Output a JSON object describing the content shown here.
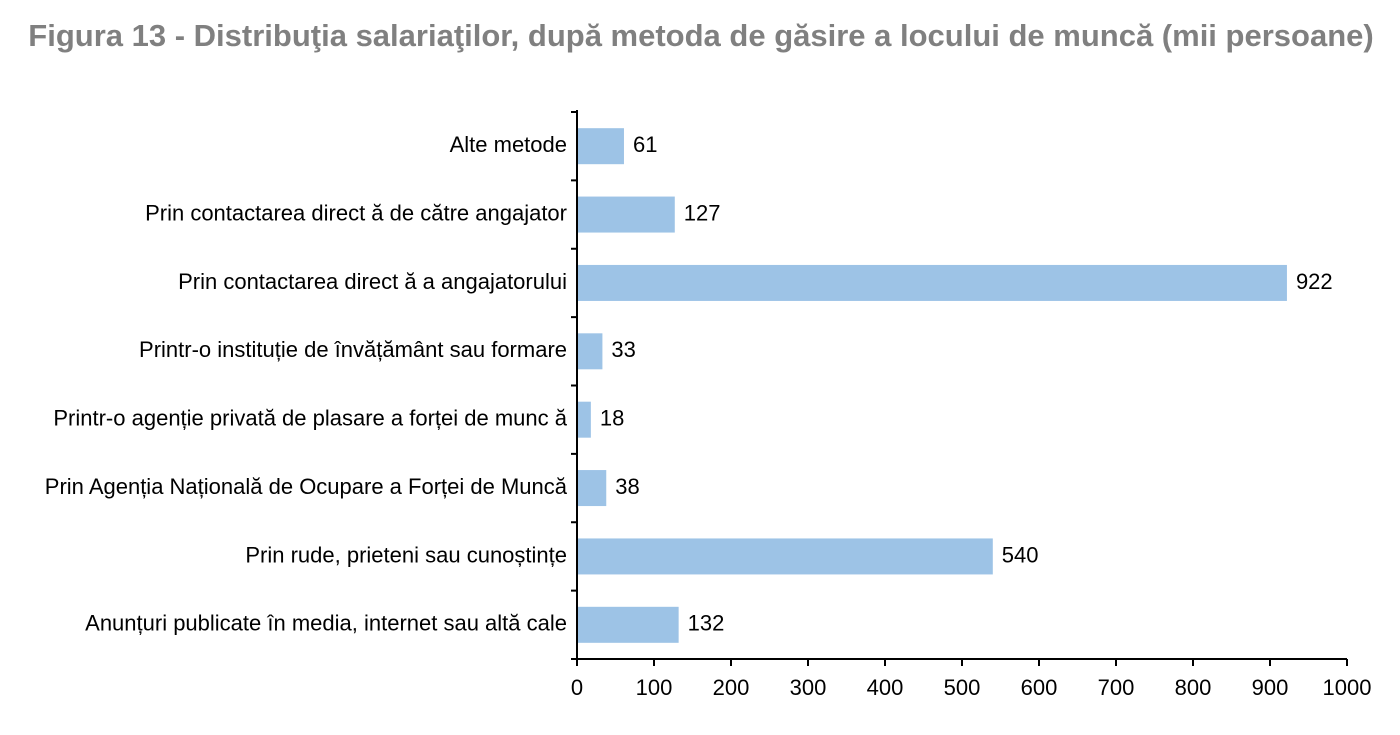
{
  "chart_data": {
    "type": "bar",
    "orientation": "horizontal",
    "title": "Figura 13 - Distribuţia salariaţilor, după metoda de găsire a locului de muncă (mii persoane)",
    "categories": [
      "Alte metode",
      "Prin contactarea direct ă de către angajator",
      "Prin contactarea direct ă a angajatorului",
      "Printr-o instituție de învățământ sau formare",
      "Printr-o agenție privată de plasare a forței de munc ă",
      "Prin Agenția Națională de Ocupare a Forței de Muncă",
      "Prin rude, prieteni sau cunoștințe",
      "Anunțuri publicate în media, internet sau altă cale"
    ],
    "values": [
      61,
      127,
      922,
      33,
      18,
      38,
      540,
      132
    ],
    "xlim": [
      0,
      1000
    ],
    "xticks": [
      0,
      100,
      200,
      300,
      400,
      500,
      600,
      700,
      800,
      900,
      1000
    ],
    "xlabel": "",
    "ylabel": "",
    "grid": false,
    "legend": "none",
    "colors": {
      "bar": "#9DC3E6",
      "axis": "#000000",
      "title": "#808080",
      "text": "#000000"
    }
  }
}
